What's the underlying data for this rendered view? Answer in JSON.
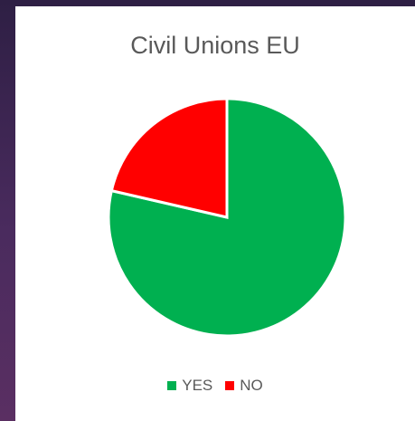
{
  "chart_data": {
    "type": "pie",
    "title": "Civil Unions EU",
    "categories": [
      "YES",
      "NO"
    ],
    "values": [
      78.6,
      21.4
    ],
    "colors": [
      "#00b050",
      "#ff0000"
    ],
    "legend_position": "bottom"
  }
}
